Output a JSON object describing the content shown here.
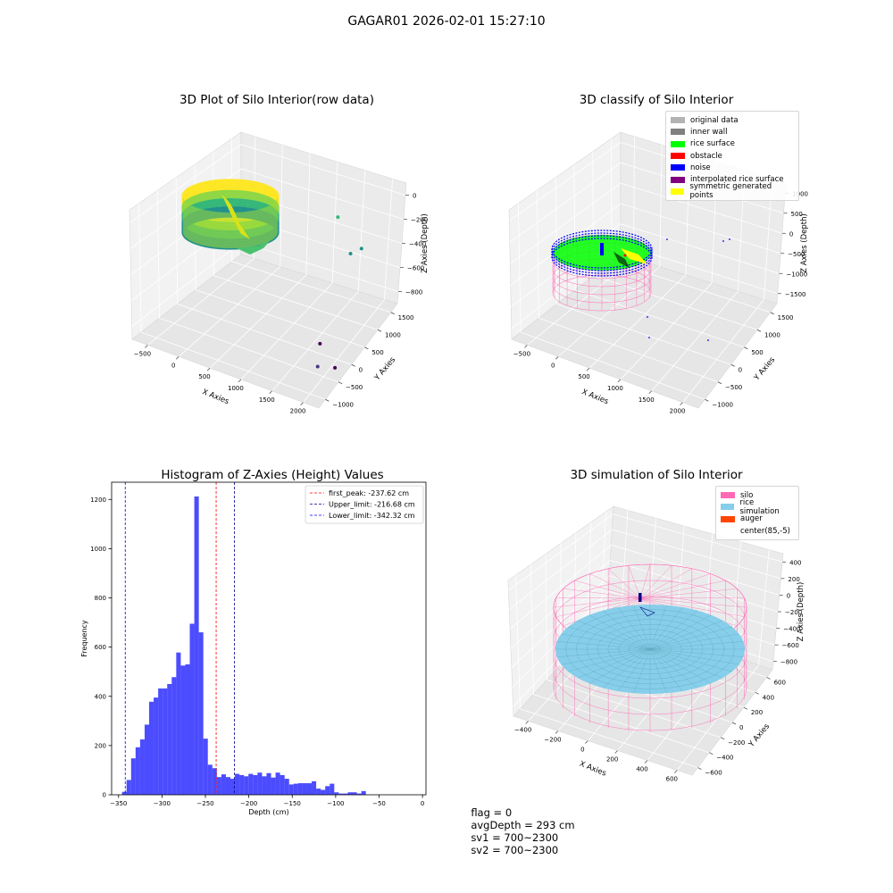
{
  "suptitle": "GAGAR01 2026-02-01 15:27:10",
  "chart_data": [
    {
      "type": "scatter",
      "title": "3D Plot of Silo Interior(row data)",
      "xlabel": "X Axies",
      "ylabel": "Y Axies",
      "zlabel": "Z Axies (Depth)",
      "x_ticks": [
        "−500",
        "0",
        "500",
        "1000",
        "1500",
        "2000"
      ],
      "y_ticks": [
        "−1000",
        "−500",
        "0",
        "500",
        "1000",
        "1500"
      ],
      "z_ticks": [
        "0",
        "−200",
        "−400",
        "−600",
        "−800"
      ],
      "xlim": [
        -650,
        2050
      ],
      "ylim": [
        -1100,
        1600
      ],
      "zlim": [
        -900,
        50
      ],
      "colormap": [
        "#fde725",
        "#8fd744",
        "#35b779",
        "#21918c",
        "#31688e",
        "#443983",
        "#440154"
      ],
      "points": [
        {
          "x": 1100,
          "y": 1000,
          "z": -230
        },
        {
          "x": 1400,
          "y": 800,
          "z": -380
        },
        {
          "x": 1500,
          "y": 900,
          "z": -350
        },
        {
          "x": 1250,
          "y": 300,
          "z": -900
        },
        {
          "x": 1700,
          "y": -100,
          "z": -900
        },
        {
          "x": 1800,
          "y": -700,
          "z": -750
        }
      ]
    },
    {
      "type": "scatter",
      "title": "3D classify of Silo Interior",
      "xlabel": "X Axies",
      "ylabel": "Y Axies",
      "zlabel": "Z Axies (Depth)",
      "x_ticks": [
        "−500",
        "0",
        "500",
        "1000",
        "1500",
        "2000"
      ],
      "y_ticks": [
        "−1000",
        "−500",
        "0",
        "500",
        "1000",
        "1500"
      ],
      "z_ticks": [
        "1000",
        "500",
        "0",
        "−500",
        "−1000",
        "−1500"
      ],
      "legend": [
        {
          "label": "original data",
          "color": "#b3b3b3"
        },
        {
          "label": "inner wall",
          "color": "#808080"
        },
        {
          "label": "rice surface",
          "color": "#00ff00"
        },
        {
          "label": "obstacle",
          "color": "#ff0000"
        },
        {
          "label": "noise",
          "color": "#0000ff"
        },
        {
          "label": "interpolated rice surface",
          "color": "#800080"
        },
        {
          "label": "symmetric generated points",
          "color": "#ffff00"
        }
      ],
      "legend_loc": "upper right"
    },
    {
      "type": "bar",
      "title": "Histogram of Z-Axies (Height) Values",
      "xlabel": "Depth (cm)",
      "ylabel": "Frequency",
      "bin_start": -346,
      "bin_width": 5.2,
      "values": [
        12,
        60,
        148,
        193,
        225,
        285,
        378,
        395,
        432,
        432,
        450,
        478,
        578,
        525,
        530,
        695,
        1212,
        660,
        228,
        122,
        108,
        72,
        83,
        72,
        65,
        85,
        80,
        75,
        85,
        80,
        90,
        75,
        88,
        70,
        90,
        80,
        65,
        42,
        45,
        47,
        47,
        47,
        55,
        25,
        20,
        35,
        45,
        10,
        5,
        5,
        10,
        10,
        5,
        15
      ],
      "xlim": [
        -358,
        4
      ],
      "ylim": [
        0,
        1270
      ],
      "x_ticks": [
        -350,
        -300,
        -250,
        -200,
        -150,
        -100,
        -50,
        0
      ],
      "y_ticks": [
        0,
        200,
        400,
        600,
        800,
        1000,
        1200
      ],
      "bar_color": "#0000ff",
      "vlines": [
        {
          "label": "first_peak: -237.62 cm",
          "value": -237.62,
          "color": "#ff0000"
        },
        {
          "label": "Upper_limit: -216.68 cm",
          "value": -216.68,
          "color": "#00008b"
        },
        {
          "label": "Lower_limit: -342.32 cm",
          "value": -342.32,
          "color": "#0000ff"
        }
      ],
      "legend_loc": "upper right"
    },
    {
      "type": "scatter",
      "title": "3D simulation of Silo Interior",
      "xlabel": "X Axies",
      "ylabel": "Y Axies",
      "zlabel": "Z Axies (Depth)",
      "x_ticks": [
        "−400",
        "−200",
        "0",
        "200",
        "400",
        "600"
      ],
      "y_ticks": [
        "−600",
        "−400",
        "−200",
        "0",
        "200",
        "400",
        "600"
      ],
      "z_ticks": [
        "400",
        "200",
        "0",
        "−200",
        "−400",
        "−600",
        "−800"
      ],
      "legend": [
        {
          "label": "silo",
          "color": "#ff69b4"
        },
        {
          "label": "rice simulation",
          "color": "#87ceeb"
        },
        {
          "label": "auger",
          "color": "#ff4500"
        },
        {
          "label": "center(85,-5)",
          "color": ""
        }
      ],
      "legend_loc": "upper right"
    }
  ],
  "status": {
    "flag": "flag = 0",
    "avg_depth": "avgDepth = 293 cm",
    "sv1": "sv1 = 700~2300",
    "sv2": "sv2 = 700~2300"
  }
}
